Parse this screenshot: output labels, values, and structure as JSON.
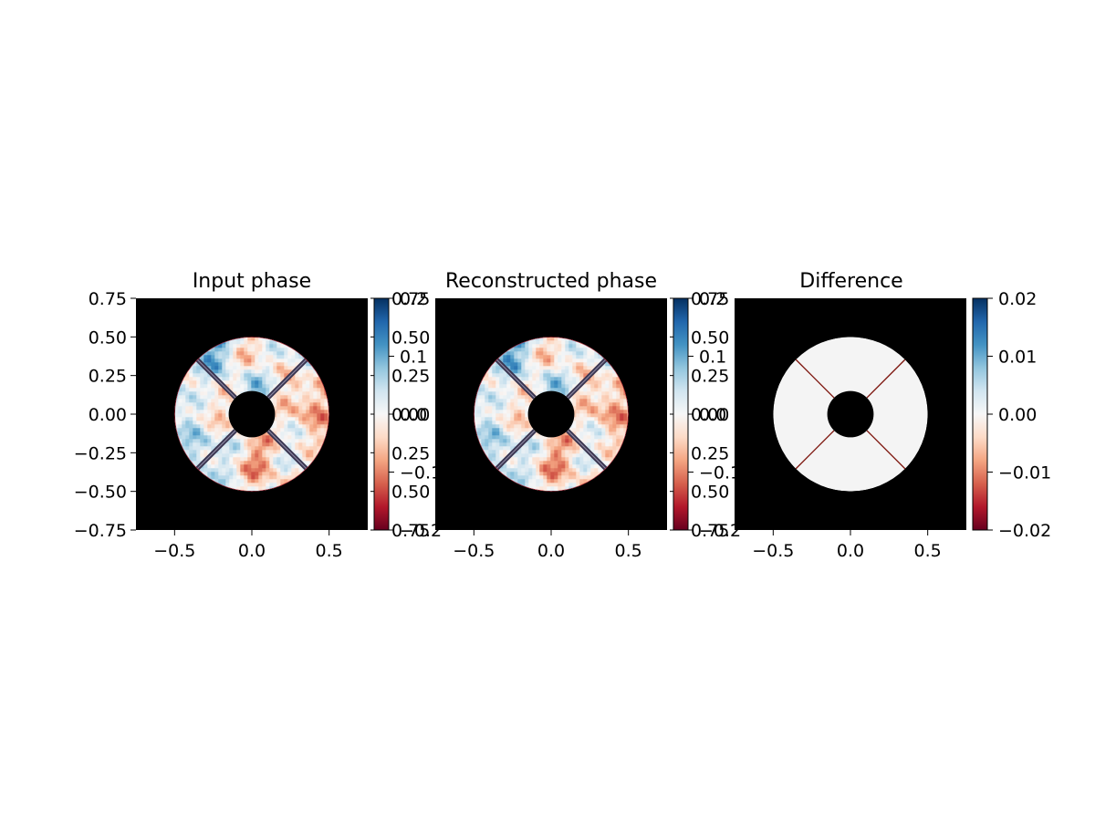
{
  "colors": {
    "mask": "#000000",
    "background": "#ffffff",
    "cmap_RdBu": [
      "#67001f",
      "#b2182b",
      "#d6604d",
      "#f4a582",
      "#fddbc7",
      "#f7f7f7",
      "#d1e5f0",
      "#92c5de",
      "#4393c3",
      "#2166ac",
      "#053061"
    ],
    "spider_strut": "#3a3550",
    "residual_edge": "#7a1008"
  },
  "chart_data": [
    {
      "type": "heatmap",
      "title": "Input phase",
      "xlim": [
        -0.75,
        0.75
      ],
      "ylim": [
        -0.75,
        0.75
      ],
      "xticks": [
        "−0.5",
        "0.0",
        "0.5"
      ],
      "xtick_values": [
        -0.5,
        0.0,
        0.5
      ],
      "yticks": [
        "−0.75",
        "−0.50",
        "−0.25",
        "0.00",
        "0.25",
        "0.50",
        "0.75"
      ],
      "ytick_values": [
        -0.75,
        -0.5,
        -0.25,
        0.0,
        0.25,
        0.5,
        0.75
      ],
      "pupil_outer_radius": 0.5,
      "pupil_inner_radius": 0.15,
      "spider_angles_deg": [
        45,
        135,
        225,
        315
      ],
      "colorbar": {
        "range": [
          -0.2,
          0.2
        ],
        "ticks": [
          "0.2",
          "0.1",
          "0.0",
          "−0.1",
          "−0.2"
        ],
        "tick_values": [
          0.2,
          0.1,
          0.0,
          -0.1,
          -0.2
        ],
        "overlay_ticks": [
          "0.75",
          "0.50",
          "0.25",
          "0.00",
          "0.25",
          "0.50",
          "0.75"
        ],
        "overlay_tick_values": [
          0.75,
          0.5,
          0.25,
          0.0,
          -0.25,
          -0.5,
          -0.75
        ]
      }
    },
    {
      "type": "heatmap",
      "title": "Reconstructed phase",
      "xlim": [
        -0.75,
        0.75
      ],
      "ylim": [
        -0.75,
        0.75
      ],
      "xticks": [
        "−0.5",
        "0.0",
        "0.5"
      ],
      "xtick_values": [
        -0.5,
        0.0,
        0.5
      ],
      "pupil_outer_radius": 0.5,
      "pupil_inner_radius": 0.15,
      "spider_angles_deg": [
        45,
        135,
        225,
        315
      ],
      "colorbar": {
        "range": [
          -0.2,
          0.2
        ],
        "ticks": [
          "0.2",
          "0.1",
          "0.0",
          "−0.1",
          "−0.2"
        ],
        "tick_values": [
          0.2,
          0.1,
          0.0,
          -0.1,
          -0.2
        ],
        "overlay_ticks": [
          "0.75",
          "0.50",
          "0.25",
          "0.00",
          "0.25",
          "0.50",
          "0.75"
        ],
        "overlay_tick_values": [
          0.75,
          0.5,
          0.25,
          0.0,
          -0.25,
          -0.5,
          -0.75
        ]
      }
    },
    {
      "type": "heatmap",
      "title": "Difference",
      "xlim": [
        -0.75,
        0.75
      ],
      "ylim": [
        -0.75,
        0.75
      ],
      "xticks": [
        "−0.5",
        "0.0",
        "0.5"
      ],
      "xtick_values": [
        -0.5,
        0.0,
        0.5
      ],
      "pupil_outer_radius": 0.5,
      "pupil_inner_radius": 0.15,
      "spider_angles_deg": [
        45,
        135,
        225,
        315
      ],
      "colorbar": {
        "range": [
          -0.02,
          0.02
        ],
        "ticks": [
          "0.02",
          "0.01",
          "0.00",
          "−0.01",
          "−0.02"
        ],
        "tick_values": [
          0.02,
          0.01,
          0.0,
          -0.01,
          -0.02
        ]
      }
    }
  ]
}
